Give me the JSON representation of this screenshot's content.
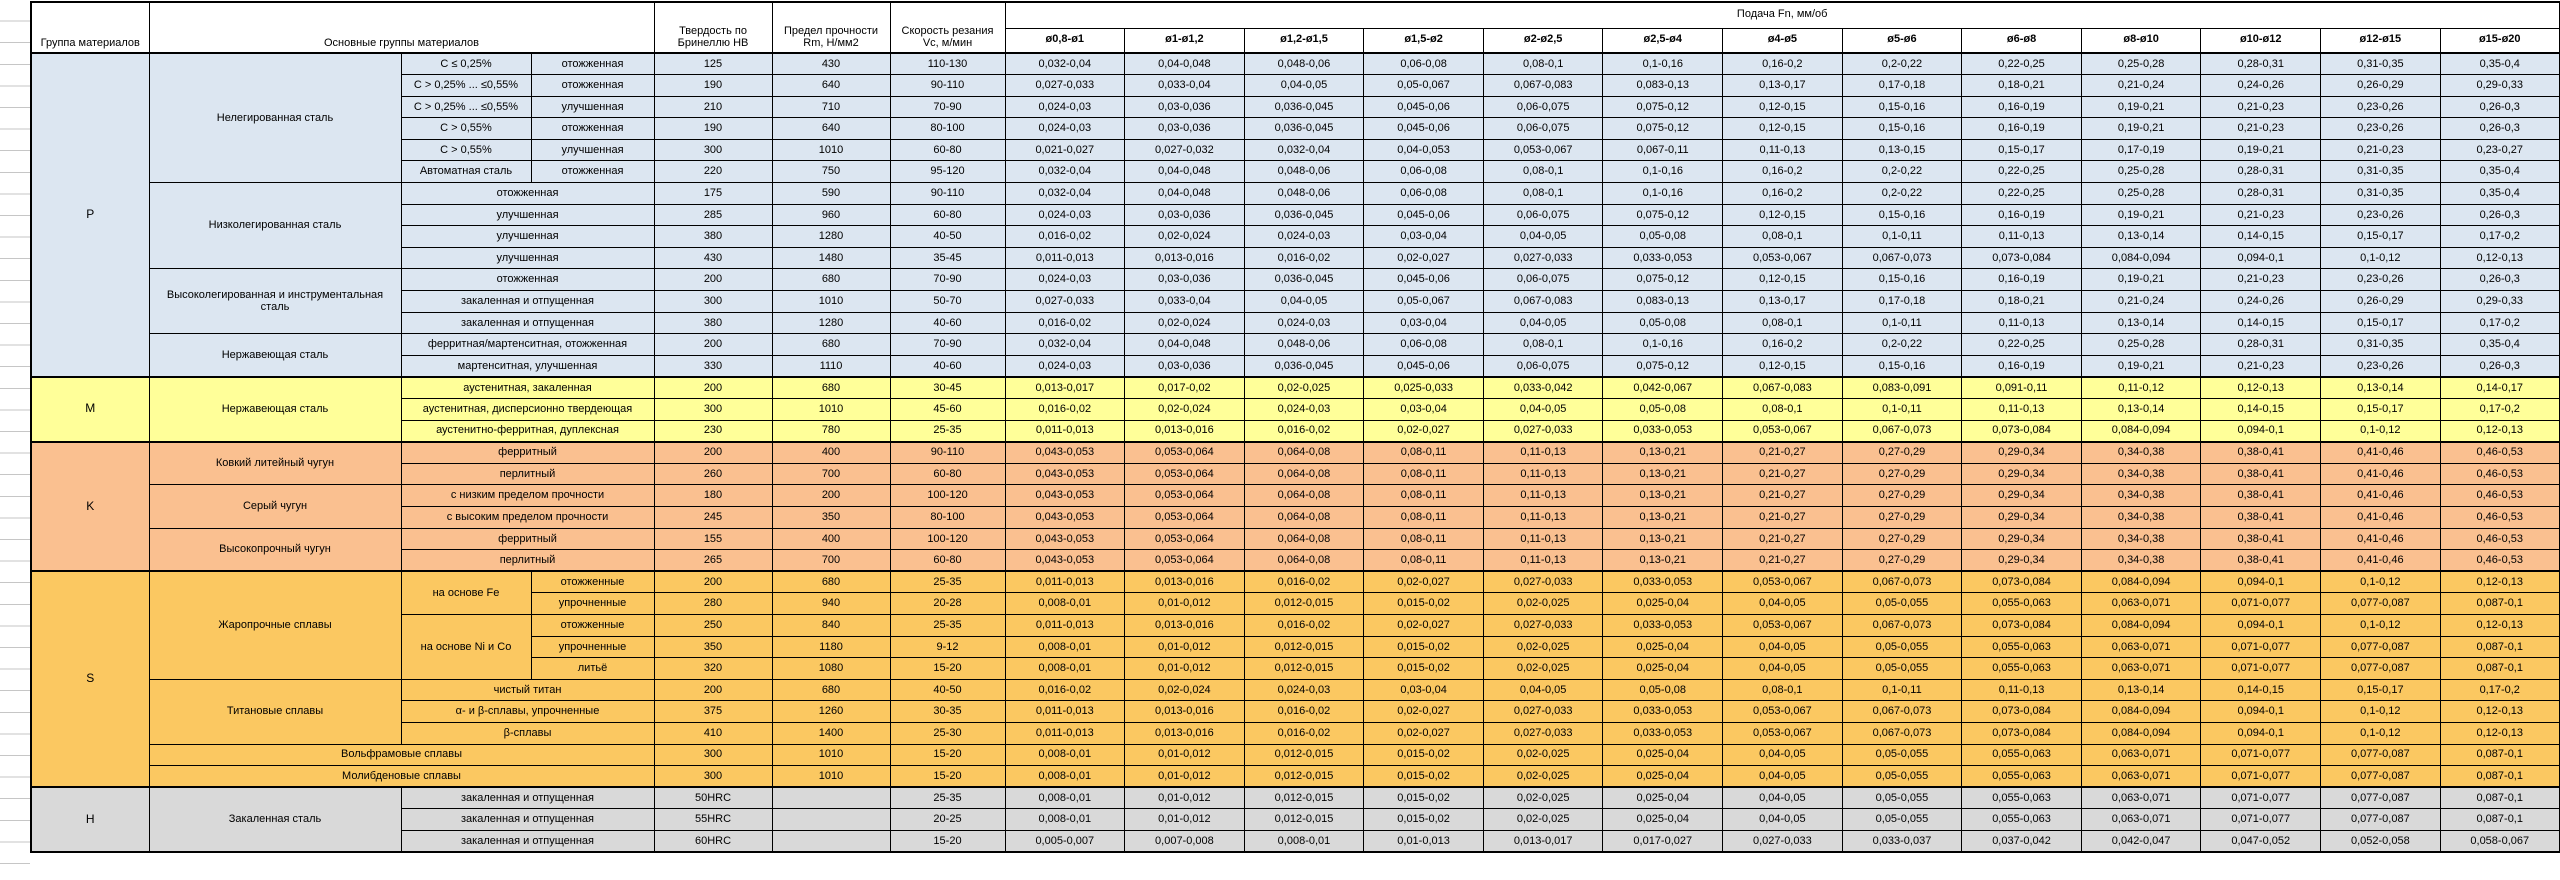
{
  "header": {
    "col_group": "Группа материалов",
    "col_main": "Основные группы материалов",
    "col_hardness": "Твердость по Бринеллю HB",
    "col_strength": "Предел прочности Rm, Н/мм2",
    "col_speed": "Скорость резания Vc, м/мин",
    "col_feed": "Подача Fn, мм/об",
    "diameters": [
      "ø0,8-ø1",
      "ø1-ø1,2",
      "ø1,2-ø1,5",
      "ø1,5-ø2",
      "ø2-ø2,5",
      "ø2,5-ø4",
      "ø4-ø5",
      "ø5-ø6",
      "ø6-ø8",
      "ø8-ø10",
      "ø10-ø12",
      "ø12-ø15",
      "ø15-ø20"
    ],
    "section_colors": {
      "P": "#dce6f1",
      "M": "#ffff99",
      "K": "#fac090",
      "S": "#fbc861",
      "H": "#d9d9d9"
    }
  },
  "feed_patterns": {
    "A": [
      "0,032-0,04",
      "0,04-0,048",
      "0,048-0,06",
      "0,06-0,08",
      "0,08-0,1",
      "0,1-0,16",
      "0,16-0,2",
      "0,2-0,22",
      "0,22-0,25",
      "0,25-0,28",
      "0,28-0,31",
      "0,31-0,35",
      "0,35-0,4"
    ],
    "B": [
      "0,027-0,033",
      "0,033-0,04",
      "0,04-0,05",
      "0,05-0,067",
      "0,067-0,083",
      "0,083-0,13",
      "0,13-0,17",
      "0,17-0,18",
      "0,18-0,21",
      "0,21-0,24",
      "0,24-0,26",
      "0,26-0,29",
      "0,29-0,33"
    ],
    "C": [
      "0,024-0,03",
      "0,03-0,036",
      "0,036-0,045",
      "0,045-0,06",
      "0,06-0,075",
      "0,075-0,12",
      "0,12-0,15",
      "0,15-0,16",
      "0,16-0,19",
      "0,19-0,21",
      "0,21-0,23",
      "0,23-0,26",
      "0,26-0,3"
    ],
    "D": [
      "0,021-0,027",
      "0,027-0,032",
      "0,032-0,04",
      "0,04-0,053",
      "0,053-0,067",
      "0,067-0,11",
      "0,11-0,13",
      "0,13-0,15",
      "0,15-0,17",
      "0,17-0,19",
      "0,19-0,21",
      "0,21-0,23",
      "0,23-0,27"
    ],
    "E": [
      "0,016-0,02",
      "0,02-0,024",
      "0,024-0,03",
      "0,03-0,04",
      "0,04-0,05",
      "0,05-0,08",
      "0,08-0,1",
      "0,1-0,11",
      "0,11-0,13",
      "0,13-0,14",
      "0,14-0,15",
      "0,15-0,17",
      "0,17-0,2"
    ],
    "F": [
      "0,011-0,013",
      "0,013-0,016",
      "0,016-0,02",
      "0,02-0,027",
      "0,027-0,033",
      "0,033-0,053",
      "0,053-0,067",
      "0,067-0,073",
      "0,073-0,084",
      "0,084-0,094",
      "0,094-0,1",
      "0,1-0,12",
      "0,12-0,13"
    ],
    "G": [
      "0,013-0,017",
      "0,017-0,02",
      "0,02-0,025",
      "0,025-0,033",
      "0,033-0,042",
      "0,042-0,067",
      "0,067-0,083",
      "0,083-0,091",
      "0,091-0,11",
      "0,11-0,12",
      "0,12-0,13",
      "0,13-0,14",
      "0,14-0,17"
    ],
    "K": [
      "0,043-0,053",
      "0,053-0,064",
      "0,064-0,08",
      "0,08-0,11",
      "0,11-0,13",
      "0,13-0,21",
      "0,21-0,27",
      "0,27-0,29",
      "0,29-0,34",
      "0,34-0,38",
      "0,38-0,41",
      "0,41-0,46",
      "0,46-0,53"
    ],
    "S": [
      "0,008-0,01",
      "0,01-0,012",
      "0,012-0,015",
      "0,015-0,02",
      "0,02-0,025",
      "0,025-0,04",
      "0,04-0,05",
      "0,05-0,055",
      "0,055-0,063",
      "0,063-0,071",
      "0,071-0,077",
      "0,077-0,087",
      "0,087-0,1"
    ],
    "H": [
      "0,005-0,007",
      "0,007-0,008",
      "0,008-0,01",
      "0,01-0,013",
      "0,013-0,017",
      "0,017-0,027",
      "0,027-0,033",
      "0,033-0,037",
      "0,037-0,042",
      "0,042-0,047",
      "0,047-0,052",
      "0,052-0,058",
      "0,058-0,067"
    ]
  },
  "rows": [
    {
      "section": "P",
      "first": true,
      "labels": [
        {
          "t": "P",
          "rs": 15,
          "g": 1
        },
        {
          "t": "Нелегированная сталь",
          "rs": 6
        },
        {
          "t": "C ≤ 0,25%"
        },
        {
          "t": "отожженная"
        }
      ],
      "hb": "125",
      "rm": "430",
      "vc": "110-130",
      "f": "A"
    },
    {
      "section": "P",
      "labels": [
        {
          "t": "C > 0,25% ... ≤0,55%"
        },
        {
          "t": "отожженная"
        }
      ],
      "hb": "190",
      "rm": "640",
      "vc": "90-110",
      "f": "B"
    },
    {
      "section": "P",
      "labels": [
        {
          "t": "C > 0,25% ... ≤0,55%"
        },
        {
          "t": "улучшенная"
        }
      ],
      "hb": "210",
      "rm": "710",
      "vc": "70-90",
      "f": "C"
    },
    {
      "section": "P",
      "labels": [
        {
          "t": "C > 0,55%"
        },
        {
          "t": "отожженная"
        }
      ],
      "hb": "190",
      "rm": "640",
      "vc": "80-100",
      "f": "C"
    },
    {
      "section": "P",
      "labels": [
        {
          "t": "C > 0,55%"
        },
        {
          "t": "улучшенная"
        }
      ],
      "hb": "300",
      "rm": "1010",
      "vc": "60-80",
      "f": "D"
    },
    {
      "section": "P",
      "labels": [
        {
          "t": "Автоматная сталь"
        },
        {
          "t": "отожженная"
        }
      ],
      "hb": "220",
      "rm": "750",
      "vc": "95-120",
      "f": "A"
    },
    {
      "section": "P",
      "labels": [
        {
          "t": "Низколегированная сталь",
          "rs": 4
        },
        {
          "t": "отожженная",
          "cs": 2
        }
      ],
      "hb": "175",
      "rm": "590",
      "vc": "90-110",
      "f": "A"
    },
    {
      "section": "P",
      "labels": [
        {
          "t": "улучшенная",
          "cs": 2
        }
      ],
      "hb": "285",
      "rm": "960",
      "vc": "60-80",
      "f": "C"
    },
    {
      "section": "P",
      "labels": [
        {
          "t": "улучшенная",
          "cs": 2
        }
      ],
      "hb": "380",
      "rm": "1280",
      "vc": "40-50",
      "f": "E"
    },
    {
      "section": "P",
      "labels": [
        {
          "t": "улучшенная",
          "cs": 2
        }
      ],
      "hb": "430",
      "rm": "1480",
      "vc": "35-45",
      "f": "F"
    },
    {
      "section": "P",
      "labels": [
        {
          "t": "Высоколегированная и инструментальная сталь",
          "rs": 3
        },
        {
          "t": "отожженная",
          "cs": 2
        }
      ],
      "hb": "200",
      "rm": "680",
      "vc": "70-90",
      "f": "C"
    },
    {
      "section": "P",
      "labels": [
        {
          "t": "закаленная и отпущенная",
          "cs": 2
        }
      ],
      "hb": "300",
      "rm": "1010",
      "vc": "50-70",
      "f": "B"
    },
    {
      "section": "P",
      "labels": [
        {
          "t": "закаленная и отпущенная",
          "cs": 2
        }
      ],
      "hb": "380",
      "rm": "1280",
      "vc": "40-60",
      "f": "E"
    },
    {
      "section": "P",
      "labels": [
        {
          "t": "Нержавеющая сталь",
          "rs": 2
        },
        {
          "t": "ферритная/мартенситная, отожженная",
          "cs": 2
        }
      ],
      "hb": "200",
      "rm": "680",
      "vc": "70-90",
      "f": "A"
    },
    {
      "section": "P",
      "labels": [
        {
          "t": "мартенситная, улучшенная",
          "cs": 2
        }
      ],
      "hb": "330",
      "rm": "1110",
      "vc": "40-60",
      "f": "C"
    },
    {
      "section": "M",
      "first": true,
      "labels": [
        {
          "t": "M",
          "rs": 3,
          "g": 1
        },
        {
          "t": "Нержавеющая сталь",
          "rs": 3
        },
        {
          "t": "аустенитная, закаленная",
          "cs": 2
        }
      ],
      "hb": "200",
      "rm": "680",
      "vc": "30-45",
      "f": "G"
    },
    {
      "section": "M",
      "labels": [
        {
          "t": "аустенитная, дисперсионно твердеющая",
          "cs": 2
        }
      ],
      "hb": "300",
      "rm": "1010",
      "vc": "45-60",
      "f": "E"
    },
    {
      "section": "M",
      "labels": [
        {
          "t": "аустенитно-ферритная, дуплексная",
          "cs": 2
        }
      ],
      "hb": "230",
      "rm": "780",
      "vc": "25-35",
      "f": "F"
    },
    {
      "section": "K",
      "first": true,
      "labels": [
        {
          "t": "K",
          "rs": 6,
          "g": 1
        },
        {
          "t": "Ковкий литейный чугун",
          "rs": 2
        },
        {
          "t": "ферритный",
          "cs": 2
        }
      ],
      "hb": "200",
      "rm": "400",
      "vc": "90-110",
      "f": "K"
    },
    {
      "section": "K",
      "labels": [
        {
          "t": "перлитный",
          "cs": 2
        }
      ],
      "hb": "260",
      "rm": "700",
      "vc": "60-80",
      "f": "K"
    },
    {
      "section": "K",
      "labels": [
        {
          "t": "Серый чугун",
          "rs": 2
        },
        {
          "t": "с низким пределом прочности",
          "cs": 2
        }
      ],
      "hb": "180",
      "rm": "200",
      "vc": "100-120",
      "f": "K"
    },
    {
      "section": "K",
      "labels": [
        {
          "t": "с высоким пределом прочности",
          "cs": 2
        }
      ],
      "hb": "245",
      "rm": "350",
      "vc": "80-100",
      "f": "K"
    },
    {
      "section": "K",
      "labels": [
        {
          "t": "Высокопрочный чугун",
          "rs": 2
        },
        {
          "t": "ферритный",
          "cs": 2
        }
      ],
      "hb": "155",
      "rm": "400",
      "vc": "100-120",
      "f": "K"
    },
    {
      "section": "K",
      "labels": [
        {
          "t": "перлитный",
          "cs": 2
        }
      ],
      "hb": "265",
      "rm": "700",
      "vc": "60-80",
      "f": "K"
    },
    {
      "section": "S",
      "first": true,
      "labels": [
        {
          "t": "S",
          "rs": 10,
          "g": 1
        },
        {
          "t": "Жаропрочные сплавы",
          "rs": 5
        },
        {
          "t": "на основе Fe",
          "rs": 2
        },
        {
          "t": "отожженные"
        }
      ],
      "hb": "200",
      "rm": "680",
      "vc": "25-35",
      "f": "F"
    },
    {
      "section": "S",
      "labels": [
        {
          "t": "упрочненные"
        }
      ],
      "hb": "280",
      "rm": "940",
      "vc": "20-28",
      "f": "S"
    },
    {
      "section": "S",
      "labels": [
        {
          "t": "на основе Ni и Co",
          "rs": 3
        },
        {
          "t": "отожженные"
        }
      ],
      "hb": "250",
      "rm": "840",
      "vc": "25-35",
      "f": "F"
    },
    {
      "section": "S",
      "labels": [
        {
          "t": "упрочненные"
        }
      ],
      "hb": "350",
      "rm": "1180",
      "vc": "9-12",
      "f": "S"
    },
    {
      "section": "S",
      "labels": [
        {
          "t": "литьё"
        }
      ],
      "hb": "320",
      "rm": "1080",
      "vc": "15-20",
      "f": "S"
    },
    {
      "section": "S",
      "labels": [
        {
          "t": "Титановые сплавы",
          "rs": 3
        },
        {
          "t": "чистый титан",
          "cs": 2
        }
      ],
      "hb": "200",
      "rm": "680",
      "vc": "40-50",
      "f": "E"
    },
    {
      "section": "S",
      "labels": [
        {
          "t": "α- и β-сплавы, упрочненные",
          "cs": 2
        }
      ],
      "hb": "375",
      "rm": "1260",
      "vc": "30-35",
      "f": "F"
    },
    {
      "section": "S",
      "labels": [
        {
          "t": "β-сплавы",
          "cs": 2
        }
      ],
      "hb": "410",
      "rm": "1400",
      "vc": "25-30",
      "f": "F"
    },
    {
      "section": "S",
      "labels": [
        {
          "t": "Вольфрамовые сплавы",
          "cs": 3
        }
      ],
      "hb": "300",
      "rm": "1010",
      "vc": "15-20",
      "f": "S"
    },
    {
      "section": "S",
      "labels": [
        {
          "t": "Молибденовые сплавы",
          "cs": 3
        }
      ],
      "hb": "300",
      "rm": "1010",
      "vc": "15-20",
      "f": "S"
    },
    {
      "section": "H",
      "first": true,
      "labels": [
        {
          "t": "H",
          "rs": 3,
          "g": 1
        },
        {
          "t": "Закаленная сталь",
          "rs": 3
        },
        {
          "t": "закаленная и отпущенная",
          "cs": 2
        }
      ],
      "hb": "50HRC",
      "rm": "",
      "vc": "25-35",
      "f": "S"
    },
    {
      "section": "H",
      "labels": [
        {
          "t": "закаленная и отпущенная",
          "cs": 2
        }
      ],
      "hb": "55HRC",
      "rm": "",
      "vc": "20-25",
      "f": "S"
    },
    {
      "section": "H",
      "labels": [
        {
          "t": "закаленная и отпущенная",
          "cs": 2
        }
      ],
      "hb": "60HRC",
      "rm": "",
      "vc": "15-20",
      "f": "H"
    }
  ]
}
